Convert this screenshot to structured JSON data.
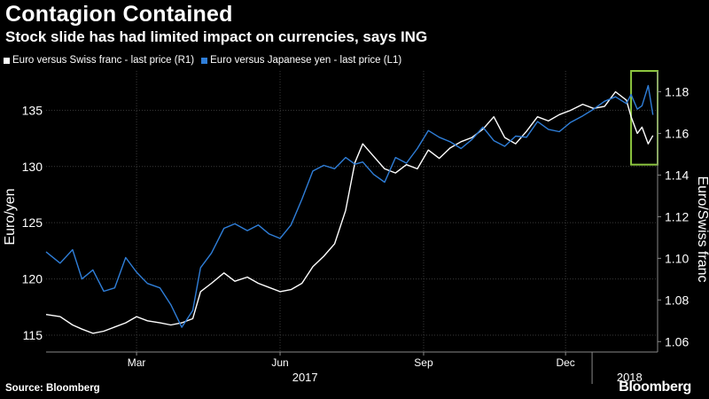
{
  "header": {
    "title": "Contagion Contained",
    "subtitle": "Stock slide has had limited impact on currencies, says ING"
  },
  "footer": {
    "source": "Source: Bloomberg",
    "brand": "Bloomberg"
  },
  "colors": {
    "background": "#000000",
    "series_white": "#ffffff",
    "series_blue": "#2f7ed8",
    "highlight_box": "#8dc63f",
    "grid": "#3a3a3a"
  },
  "chart_data": {
    "type": "line",
    "title": "Contagion Contained",
    "subtitle": "Stock slide has had limited impact on currencies, says ING",
    "y_left_label": "Euro/yen",
    "y_right_label": "Euro/Swiss franc",
    "y_left_ticks": [
      115,
      120,
      125,
      130,
      135
    ],
    "y_left_range": [
      113.5,
      138.5
    ],
    "y_right_ticks": [
      1.06,
      1.08,
      1.1,
      1.12,
      1.14,
      1.16,
      1.18
    ],
    "y_right_range": [
      1.055,
      1.19
    ],
    "x_range": [
      "2017-01-16",
      "2018-02-12"
    ],
    "x_ticks": [
      {
        "date": "2017-03-15",
        "label": "Mar"
      },
      {
        "date": "2017-06-15",
        "label": "Jun"
      },
      {
        "date": "2017-09-15",
        "label": "Sep"
      },
      {
        "date": "2017-12-15",
        "label": "Dec"
      }
    ],
    "year_labels": [
      {
        "date": "2017-07-01",
        "label": "2017"
      },
      {
        "date": "2018-01-25",
        "label": "2018"
      }
    ],
    "year_divider_date": "2018-01-01",
    "grid": true,
    "legend_position": "top-left",
    "highlight": {
      "x_from": "2018-01-26",
      "x_to": "2018-02-12",
      "y_right_from": 1.145,
      "y_right_to": 1.19
    },
    "series": [
      {
        "name": "Euro versus Swiss franc - last price (R1)",
        "axis": "right",
        "color": "#ffffff",
        "points": [
          [
            "2017-01-16",
            1.073
          ],
          [
            "2017-01-25",
            1.072
          ],
          [
            "2017-02-02",
            1.068
          ],
          [
            "2017-02-08",
            1.066
          ],
          [
            "2017-02-15",
            1.064
          ],
          [
            "2017-02-22",
            1.065
          ],
          [
            "2017-03-01",
            1.067
          ],
          [
            "2017-03-08",
            1.069
          ],
          [
            "2017-03-15",
            1.072
          ],
          [
            "2017-03-22",
            1.07
          ],
          [
            "2017-03-30",
            1.069
          ],
          [
            "2017-04-06",
            1.068
          ],
          [
            "2017-04-13",
            1.069
          ],
          [
            "2017-04-20",
            1.071
          ],
          [
            "2017-04-25",
            1.084
          ],
          [
            "2017-05-02",
            1.088
          ],
          [
            "2017-05-10",
            1.093
          ],
          [
            "2017-05-17",
            1.089
          ],
          [
            "2017-05-25",
            1.091
          ],
          [
            "2017-06-01",
            1.088
          ],
          [
            "2017-06-08",
            1.086
          ],
          [
            "2017-06-15",
            1.084
          ],
          [
            "2017-06-22",
            1.085
          ],
          [
            "2017-06-29",
            1.088
          ],
          [
            "2017-07-06",
            1.096
          ],
          [
            "2017-07-13",
            1.101
          ],
          [
            "2017-07-20",
            1.107
          ],
          [
            "2017-07-27",
            1.123
          ],
          [
            "2017-08-02",
            1.146
          ],
          [
            "2017-08-07",
            1.155
          ],
          [
            "2017-08-14",
            1.149
          ],
          [
            "2017-08-21",
            1.143
          ],
          [
            "2017-08-28",
            1.141
          ],
          [
            "2017-09-04",
            1.145
          ],
          [
            "2017-09-11",
            1.143
          ],
          [
            "2017-09-18",
            1.152
          ],
          [
            "2017-09-25",
            1.148
          ],
          [
            "2017-10-02",
            1.153
          ],
          [
            "2017-10-09",
            1.156
          ],
          [
            "2017-10-16",
            1.158
          ],
          [
            "2017-10-23",
            1.162
          ],
          [
            "2017-10-30",
            1.168
          ],
          [
            "2017-11-06",
            1.158
          ],
          [
            "2017-11-13",
            1.155
          ],
          [
            "2017-11-20",
            1.161
          ],
          [
            "2017-11-27",
            1.168
          ],
          [
            "2017-12-04",
            1.166
          ],
          [
            "2017-12-11",
            1.169
          ],
          [
            "2017-12-18",
            1.171
          ],
          [
            "2017-12-26",
            1.174
          ],
          [
            "2018-01-02",
            1.172
          ],
          [
            "2018-01-09",
            1.173
          ],
          [
            "2018-01-16",
            1.18
          ],
          [
            "2018-01-23",
            1.176
          ],
          [
            "2018-01-26",
            1.168
          ],
          [
            "2018-01-30",
            1.16
          ],
          [
            "2018-02-02",
            1.163
          ],
          [
            "2018-02-06",
            1.155
          ],
          [
            "2018-02-09",
            1.159
          ]
        ]
      },
      {
        "name": "Euro versus Japanese yen - last price (L1)",
        "axis": "left",
        "color": "#2f7ed8",
        "points": [
          [
            "2017-01-16",
            122.4
          ],
          [
            "2017-01-25",
            121.4
          ],
          [
            "2017-02-02",
            122.6
          ],
          [
            "2017-02-08",
            120.0
          ],
          [
            "2017-02-15",
            120.8
          ],
          [
            "2017-02-22",
            118.9
          ],
          [
            "2017-03-01",
            119.2
          ],
          [
            "2017-03-08",
            121.9
          ],
          [
            "2017-03-15",
            120.6
          ],
          [
            "2017-03-22",
            119.6
          ],
          [
            "2017-03-30",
            119.2
          ],
          [
            "2017-04-06",
            117.7
          ],
          [
            "2017-04-13",
            115.7
          ],
          [
            "2017-04-20",
            117.2
          ],
          [
            "2017-04-25",
            121.0
          ],
          [
            "2017-05-02",
            122.3
          ],
          [
            "2017-05-10",
            124.5
          ],
          [
            "2017-05-17",
            124.9
          ],
          [
            "2017-05-25",
            124.3
          ],
          [
            "2017-06-01",
            124.8
          ],
          [
            "2017-06-08",
            124.0
          ],
          [
            "2017-06-15",
            123.6
          ],
          [
            "2017-06-22",
            124.8
          ],
          [
            "2017-06-29",
            127.1
          ],
          [
            "2017-07-06",
            129.6
          ],
          [
            "2017-07-13",
            130.1
          ],
          [
            "2017-07-20",
            129.8
          ],
          [
            "2017-07-27",
            130.8
          ],
          [
            "2017-08-02",
            130.2
          ],
          [
            "2017-08-07",
            130.4
          ],
          [
            "2017-08-14",
            129.3
          ],
          [
            "2017-08-21",
            128.6
          ],
          [
            "2017-08-28",
            130.8
          ],
          [
            "2017-09-04",
            130.3
          ],
          [
            "2017-09-11",
            131.6
          ],
          [
            "2017-09-18",
            133.2
          ],
          [
            "2017-09-25",
            132.6
          ],
          [
            "2017-10-02",
            132.2
          ],
          [
            "2017-10-09",
            131.6
          ],
          [
            "2017-10-16",
            132.4
          ],
          [
            "2017-10-23",
            133.5
          ],
          [
            "2017-10-30",
            132.3
          ],
          [
            "2017-11-06",
            131.8
          ],
          [
            "2017-11-13",
            132.7
          ],
          [
            "2017-11-20",
            132.6
          ],
          [
            "2017-11-27",
            134.0
          ],
          [
            "2017-12-04",
            133.3
          ],
          [
            "2017-12-11",
            133.1
          ],
          [
            "2017-12-18",
            133.9
          ],
          [
            "2017-12-26",
            134.5
          ],
          [
            "2018-01-02",
            135.1
          ],
          [
            "2018-01-09",
            135.8
          ],
          [
            "2018-01-16",
            136.2
          ],
          [
            "2018-01-23",
            135.6
          ],
          [
            "2018-01-26",
            136.4
          ],
          [
            "2018-01-30",
            135.1
          ],
          [
            "2018-02-02",
            135.4
          ],
          [
            "2018-02-06",
            137.2
          ],
          [
            "2018-02-09",
            134.6
          ]
        ]
      }
    ]
  }
}
